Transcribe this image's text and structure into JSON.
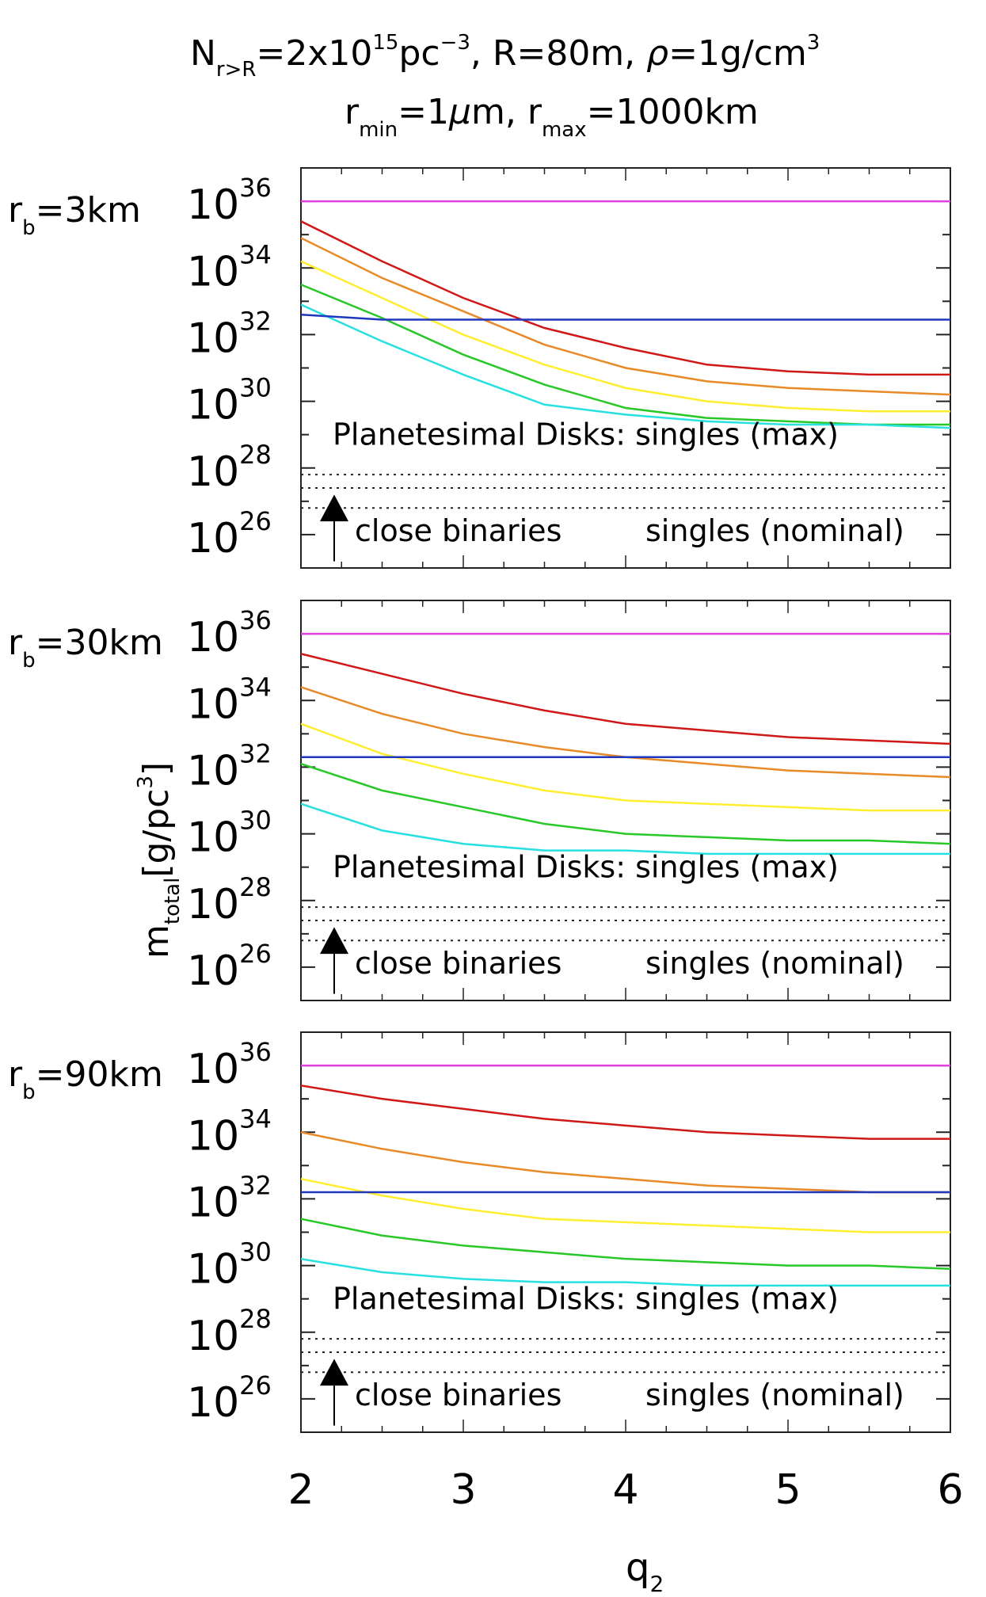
{
  "header": {
    "line1": {
      "n_base": "N",
      "n_sub": "r>R",
      "eq1": "=2x10",
      "exp1": "15",
      "pc": "pc",
      "exp2": "−3",
      "rest": ", R=80m, ",
      "rho": "ρ",
      "rho_rest": "=1g/cm",
      "exp3": "3"
    },
    "line2": {
      "r1": "r",
      "sub1": "min",
      "eq1": "=1",
      "mu": "μ",
      "eq1b": "m, ",
      "r2": "r",
      "sub2": "max",
      "eq2": "=1000km"
    }
  },
  "y_axis": {
    "base": "m",
    "sub": "total",
    "unit_open": "[g/pc",
    "unit_exp": "3",
    "unit_close": "]"
  },
  "x_axis": {
    "base": "q",
    "sub": "2",
    "ticks": [
      {
        "value": 2,
        "label": "2"
      },
      {
        "value": 3,
        "label": "3"
      },
      {
        "value": 4,
        "label": "4"
      },
      {
        "value": 5,
        "label": "5"
      },
      {
        "value": 6,
        "label": "6"
      }
    ]
  },
  "y_ticks": [
    {
      "exp": 26,
      "base": "10",
      "sup": "26"
    },
    {
      "exp": 28,
      "base": "10",
      "sup": "28"
    },
    {
      "exp": 30,
      "base": "10",
      "sup": "30"
    },
    {
      "exp": 32,
      "base": "10",
      "sup": "32"
    },
    {
      "exp": 34,
      "base": "10",
      "sup": "34"
    },
    {
      "exp": 36,
      "base": "10",
      "sup": "36"
    }
  ],
  "annotations": {
    "max": "Planetesimal Disks: singles (max)",
    "binaries": "close binaries",
    "nominal": "singles (nominal)"
  },
  "colors": {
    "magenta": "#e040e0",
    "red": "#d01818",
    "orange": "#e88a28",
    "yellow": "#ffee30",
    "green": "#28c828",
    "cyan": "#28e0e0",
    "blue": "#2038c0"
  },
  "chart_data": [
    {
      "type": "line",
      "panel_label": {
        "r": "r",
        "sub": "b",
        "val": "=3km"
      },
      "xlim": [
        2,
        6
      ],
      "ylim_log10": [
        25,
        37
      ],
      "y_scale": "log",
      "x": [
        2,
        2.5,
        3,
        3.5,
        4,
        4.5,
        5,
        5.5,
        6
      ],
      "series": [
        {
          "color": "magenta",
          "log10_values": [
            36,
            36,
            36,
            36,
            36,
            36,
            36,
            36,
            36
          ]
        },
        {
          "color": "red",
          "log10_values": [
            35.4,
            34.2,
            33.1,
            32.2,
            31.6,
            31.1,
            30.9,
            30.8,
            30.8
          ]
        },
        {
          "color": "orange",
          "log10_values": [
            34.9,
            33.7,
            32.7,
            31.7,
            31.0,
            30.6,
            30.4,
            30.3,
            30.2
          ]
        },
        {
          "color": "yellow",
          "log10_values": [
            34.2,
            33.1,
            32.0,
            31.1,
            30.4,
            30.0,
            29.8,
            29.7,
            29.7
          ]
        },
        {
          "color": "green",
          "log10_values": [
            33.5,
            32.5,
            31.4,
            30.5,
            29.8,
            29.5,
            29.4,
            29.3,
            29.3
          ]
        },
        {
          "color": "cyan",
          "log10_values": [
            32.9,
            31.8,
            30.8,
            29.9,
            29.6,
            29.4,
            29.3,
            29.3,
            29.2
          ]
        },
        {
          "color": "blue",
          "log10_values": [
            32.6,
            32.45,
            32.45,
            32.45,
            32.45,
            32.45,
            32.45,
            32.45,
            32.45
          ]
        }
      ],
      "dotted_levels_log10": [
        27.8,
        27.4,
        26.8
      ]
    },
    {
      "type": "line",
      "panel_label": {
        "r": "r",
        "sub": "b",
        "val": "=30km"
      },
      "xlim": [
        2,
        6
      ],
      "ylim_log10": [
        25,
        37
      ],
      "y_scale": "log",
      "x": [
        2,
        2.5,
        3,
        3.5,
        4,
        4.5,
        5,
        5.5,
        6
      ],
      "series": [
        {
          "color": "magenta",
          "log10_values": [
            36,
            36,
            36,
            36,
            36,
            36,
            36,
            36,
            36
          ]
        },
        {
          "color": "red",
          "log10_values": [
            35.4,
            34.8,
            34.2,
            33.7,
            33.3,
            33.1,
            32.9,
            32.8,
            32.7
          ]
        },
        {
          "color": "orange",
          "log10_values": [
            34.4,
            33.6,
            33.0,
            32.6,
            32.3,
            32.1,
            31.9,
            31.8,
            31.7
          ]
        },
        {
          "color": "yellow",
          "log10_values": [
            33.3,
            32.4,
            31.8,
            31.3,
            31.0,
            30.9,
            30.8,
            30.7,
            30.7
          ]
        },
        {
          "color": "green",
          "log10_values": [
            32.1,
            31.3,
            30.8,
            30.3,
            30.0,
            29.9,
            29.8,
            29.8,
            29.7
          ]
        },
        {
          "color": "cyan",
          "log10_values": [
            30.9,
            30.1,
            29.7,
            29.5,
            29.5,
            29.4,
            29.4,
            29.4,
            29.4
          ]
        },
        {
          "color": "blue",
          "log10_values": [
            32.3,
            32.3,
            32.3,
            32.3,
            32.3,
            32.3,
            32.3,
            32.3,
            32.3
          ]
        }
      ],
      "dotted_levels_log10": [
        27.8,
        27.4,
        26.8
      ]
    },
    {
      "type": "line",
      "panel_label": {
        "r": "r",
        "sub": "b",
        "val": "=90km"
      },
      "xlim": [
        2,
        6
      ],
      "ylim_log10": [
        25,
        37
      ],
      "y_scale": "log",
      "x": [
        2,
        2.5,
        3,
        3.5,
        4,
        4.5,
        5,
        5.5,
        6
      ],
      "series": [
        {
          "color": "magenta",
          "log10_values": [
            36,
            36,
            36,
            36,
            36,
            36,
            36,
            36,
            36
          ]
        },
        {
          "color": "red",
          "log10_values": [
            35.4,
            35.0,
            34.7,
            34.4,
            34.2,
            34.0,
            33.9,
            33.8,
            33.8
          ]
        },
        {
          "color": "orange",
          "log10_values": [
            34.0,
            33.5,
            33.1,
            32.8,
            32.6,
            32.4,
            32.3,
            32.2,
            32.2
          ]
        },
        {
          "color": "yellow",
          "log10_values": [
            32.6,
            32.1,
            31.7,
            31.4,
            31.3,
            31.2,
            31.1,
            31.0,
            31.0
          ]
        },
        {
          "color": "green",
          "log10_values": [
            31.4,
            30.9,
            30.6,
            30.4,
            30.2,
            30.1,
            30.0,
            30.0,
            29.9
          ]
        },
        {
          "color": "cyan",
          "log10_values": [
            30.2,
            29.8,
            29.6,
            29.5,
            29.5,
            29.4,
            29.4,
            29.4,
            29.4
          ]
        },
        {
          "color": "blue",
          "log10_values": [
            32.2,
            32.2,
            32.2,
            32.2,
            32.2,
            32.2,
            32.2,
            32.2,
            32.2
          ]
        }
      ],
      "dotted_levels_log10": [
        27.8,
        27.4,
        26.8
      ]
    }
  ]
}
